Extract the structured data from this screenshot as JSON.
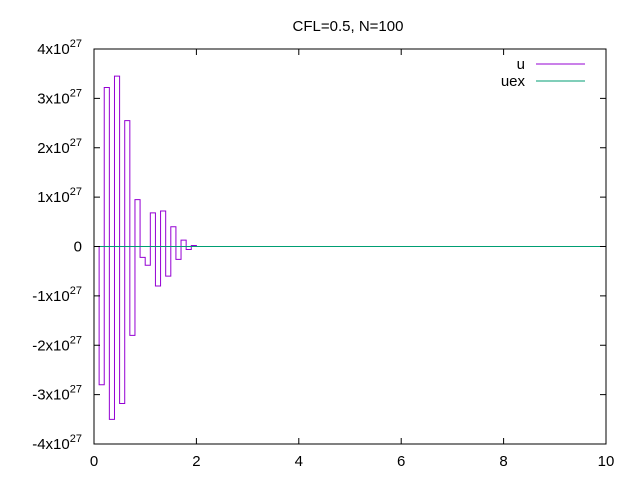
{
  "chart_data": {
    "type": "line",
    "title": "CFL=0.5, N=100",
    "xlabel": "",
    "ylabel": "",
    "xlim": [
      0,
      10
    ],
    "ylim": [
      -4e+27,
      4e+27
    ],
    "xticks": [
      0,
      2,
      4,
      6,
      8,
      10
    ],
    "xtick_labels": [
      "0",
      "2",
      "4",
      "6",
      "8",
      "10"
    ],
    "yticks": [
      -4e+27,
      -3e+27,
      -2e+27,
      -1e+27,
      0,
      1e+27,
      2e+27,
      3e+27,
      4e+27
    ],
    "ytick_labels": [
      {
        "mantissa": "-4x10",
        "exponent": "27"
      },
      {
        "mantissa": "-3x10",
        "exponent": "27"
      },
      {
        "mantissa": "-2x10",
        "exponent": "27"
      },
      {
        "mantissa": "-1x10",
        "exponent": "27"
      },
      {
        "mantissa": "0",
        "exponent": ""
      },
      {
        "mantissa": "1x10",
        "exponent": "27"
      },
      {
        "mantissa": "2x10",
        "exponent": "27"
      },
      {
        "mantissa": "3x10",
        "exponent": "27"
      },
      {
        "mantissa": "4x10",
        "exponent": "27"
      }
    ],
    "grid": false,
    "legend_position": "top-right",
    "series": [
      {
        "name": "u",
        "color": "#9400d3",
        "style": "steps",
        "x": [
          0,
          0.1,
          0.2,
          0.3,
          0.4,
          0.5,
          0.6,
          0.7,
          0.8,
          0.9,
          1.0,
          1.1,
          1.2,
          1.3,
          1.4,
          1.5,
          1.6,
          1.7,
          1.8,
          1.9,
          2.0,
          10
        ],
        "y": [
          0,
          -2.8e+27,
          3.22e+27,
          -3.5e+27,
          3.45e+27,
          -3.18e+27,
          2.55e+27,
          -1.8e+27,
          9.5e+26,
          -2.2e+26,
          -3.8e+26,
          6.8e+26,
          -8e+26,
          7.2e+26,
          -6e+26,
          4e+26,
          -2.6e+26,
          1.3e+26,
          -6e+25,
          2e+25,
          0,
          0
        ]
      },
      {
        "name": "uex",
        "color": "#009e73",
        "style": "line",
        "x": [
          0,
          10
        ],
        "y": [
          0,
          0
        ]
      }
    ]
  }
}
